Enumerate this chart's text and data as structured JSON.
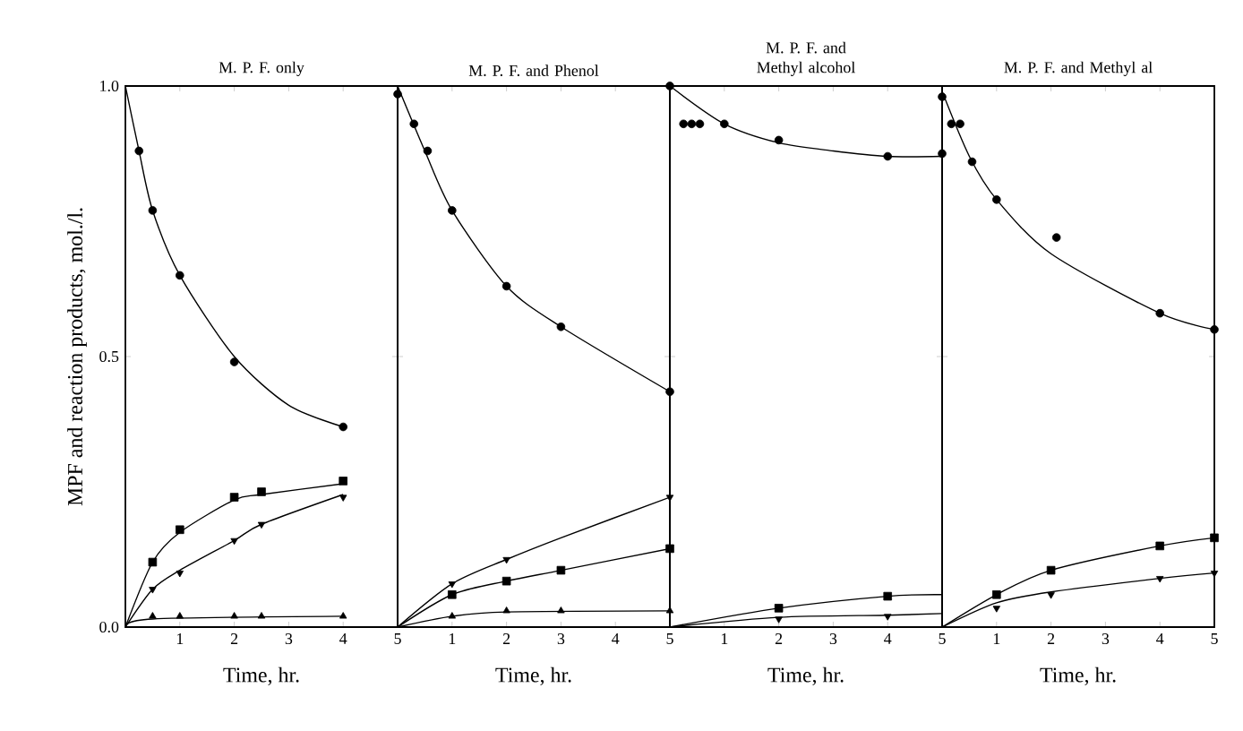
{
  "chart_data": [
    {
      "type": "scatter",
      "title": "M. P. F. only",
      "xlabel": "Time, hr.",
      "ylabel": "MPF and reaction products, mol./l.",
      "xlim": [
        0,
        5
      ],
      "ylim": [
        0,
        1
      ],
      "xticks": [
        1,
        2,
        3,
        4,
        5
      ],
      "yticks": [
        {
          "value": 0,
          "label": "0.0"
        },
        {
          "value": 0.5,
          "label": "0.5"
        },
        {
          "value": 1,
          "label": "1.0"
        }
      ],
      "series": [
        {
          "type": "line",
          "marker": "none",
          "color": "#000000",
          "x": [
            0,
            0.25,
            0.5,
            1,
            2,
            3,
            4
          ],
          "values": [
            1.0,
            0.88,
            0.77,
            0.65,
            0.5,
            0.41,
            0.37
          ]
        },
        {
          "type": "line",
          "marker": "none",
          "color": "#000000",
          "x": [
            0,
            0.5,
            1,
            2,
            2.5,
            4
          ],
          "values": [
            0,
            0.12,
            0.175,
            0.235,
            0.245,
            0.265
          ]
        },
        {
          "type": "line",
          "marker": "none",
          "color": "#000000",
          "x": [
            0,
            0.5,
            1,
            2,
            2.5,
            4
          ],
          "values": [
            0,
            0.07,
            0.105,
            0.16,
            0.19,
            0.245
          ]
        },
        {
          "type": "line",
          "marker": "none",
          "color": "#000000",
          "x": [
            0,
            0.5,
            4
          ],
          "values": [
            0,
            0.015,
            0.02
          ]
        },
        {
          "marker": "circle",
          "color": "#000000",
          "x": [
            0.25,
            0.5,
            1,
            2,
            4
          ],
          "values": [
            0.88,
            0.77,
            0.65,
            0.49,
            0.37
          ]
        },
        {
          "marker": "square",
          "color": "#000000",
          "x": [
            0.5,
            1,
            2,
            2.5,
            4
          ],
          "values": [
            0.12,
            0.18,
            0.24,
            0.25,
            0.27
          ]
        },
        {
          "marker": "triangle-down",
          "color": "#000000",
          "x": [
            0.5,
            1,
            2,
            2.5,
            4
          ],
          "values": [
            0.07,
            0.1,
            0.16,
            0.19,
            0.24
          ]
        },
        {
          "marker": "triangle",
          "color": "#000000",
          "x": [
            0.5,
            1,
            2,
            2.5,
            4
          ],
          "values": [
            0.02,
            0.02,
            0.02,
            0.02,
            0.02
          ]
        }
      ]
    },
    {
      "type": "scatter",
      "title": "M. P. F. and Phenol",
      "xlabel": "Time, hr.",
      "xlim": [
        0,
        5
      ],
      "ylim": [
        0,
        1
      ],
      "xticks": [
        1,
        2,
        3,
        4,
        5
      ],
      "yticks": [
        {
          "value": 0,
          "label": null
        },
        {
          "value": 0.5,
          "label": null
        },
        {
          "value": 1,
          "label": null
        }
      ],
      "tick_labels": "x",
      "series": [
        {
          "type": "line",
          "marker": "none",
          "color": "#000000",
          "x": [
            0,
            0.5,
            1,
            2,
            3,
            5
          ],
          "values": [
            1.0,
            0.88,
            0.77,
            0.63,
            0.555,
            0.435
          ]
        },
        {
          "type": "line",
          "marker": "none",
          "color": "#000000",
          "x": [
            0,
            1,
            2,
            3,
            5
          ],
          "values": [
            0,
            0.08,
            0.125,
            0.165,
            0.24
          ]
        },
        {
          "type": "line",
          "marker": "none",
          "color": "#000000",
          "x": [
            0,
            1,
            2,
            3,
            5
          ],
          "values": [
            0,
            0.06,
            0.085,
            0.105,
            0.145
          ]
        },
        {
          "type": "line",
          "marker": "none",
          "color": "#000000",
          "x": [
            0,
            1,
            2,
            5
          ],
          "values": [
            0,
            0.02,
            0.028,
            0.03
          ]
        },
        {
          "marker": "circle",
          "color": "#000000",
          "x": [
            0,
            0.3,
            0.55,
            1,
            2,
            3,
            5
          ],
          "values": [
            0.985,
            0.93,
            0.88,
            0.77,
            0.63,
            0.555,
            0.435
          ]
        },
        {
          "marker": "triangle-down",
          "color": "#000000",
          "x": [
            1,
            2,
            5
          ],
          "values": [
            0.08,
            0.125,
            0.24
          ]
        },
        {
          "marker": "square",
          "color": "#000000",
          "x": [
            1,
            2,
            3,
            5
          ],
          "values": [
            0.06,
            0.085,
            0.105,
            0.145
          ]
        },
        {
          "marker": "triangle",
          "color": "#000000",
          "x": [
            1,
            2,
            3,
            5
          ],
          "values": [
            0.02,
            0.03,
            0.03,
            0.03
          ]
        }
      ]
    },
    {
      "type": "scatter",
      "title": "M. P. F. and Methyl alcohol",
      "xlabel": "Time, hr.",
      "xlim": [
        0,
        5
      ],
      "ylim": [
        0,
        1
      ],
      "xticks": [
        1,
        2,
        3,
        4,
        5
      ],
      "yticks": [
        {
          "value": 0,
          "label": null
        },
        {
          "value": 0.5,
          "label": null
        },
        {
          "value": 1,
          "label": null
        }
      ],
      "tick_labels": "x",
      "series": [
        {
          "type": "line",
          "marker": "none",
          "color": "#000000",
          "x": [
            0,
            1,
            2,
            3,
            4,
            5
          ],
          "values": [
            1.0,
            0.93,
            0.895,
            0.88,
            0.87,
            0.87
          ]
        },
        {
          "type": "line",
          "marker": "none",
          "color": "#000000",
          "x": [
            0,
            2,
            4,
            5
          ],
          "values": [
            0,
            0.035,
            0.057,
            0.06
          ]
        },
        {
          "type": "line",
          "marker": "none",
          "color": "#000000",
          "x": [
            0,
            2,
            4,
            5
          ],
          "values": [
            0,
            0.018,
            0.022,
            0.025
          ]
        },
        {
          "marker": "circle",
          "color": "#000000",
          "x": [
            0,
            0.25,
            0.4,
            0.55,
            1,
            2,
            4,
            5
          ],
          "values": [
            1.0,
            0.93,
            0.93,
            0.93,
            0.93,
            0.9,
            0.87,
            0.875
          ]
        },
        {
          "marker": "square",
          "color": "#000000",
          "x": [
            2,
            4
          ],
          "values": [
            0.035,
            0.057
          ]
        },
        {
          "marker": "triangle-down",
          "color": "#000000",
          "x": [
            2,
            4
          ],
          "values": [
            0.015,
            0.02
          ]
        }
      ]
    },
    {
      "type": "scatter",
      "title": "M. P. F. and Methyl al",
      "xlabel": "Time, hr.",
      "xlim": [
        0,
        5
      ],
      "ylim": [
        0,
        1
      ],
      "xticks": [
        1,
        2,
        3,
        4,
        5
      ],
      "yticks": [
        {
          "value": 0,
          "label": null
        },
        {
          "value": 0.5,
          "label": null
        },
        {
          "value": 1,
          "label": null
        }
      ],
      "tick_labels": "x",
      "series": [
        {
          "type": "line",
          "marker": "none",
          "color": "#000000",
          "x": [
            0,
            0.5,
            1,
            2,
            4,
            5
          ],
          "values": [
            0.99,
            0.87,
            0.79,
            0.69,
            0.58,
            0.55
          ]
        },
        {
          "type": "line",
          "marker": "none",
          "color": "#000000",
          "x": [
            0,
            1,
            2,
            4,
            5
          ],
          "values": [
            0,
            0.06,
            0.105,
            0.15,
            0.165
          ]
        },
        {
          "type": "line",
          "marker": "none",
          "color": "#000000",
          "x": [
            0,
            1,
            2,
            4,
            5
          ],
          "values": [
            0,
            0.045,
            0.065,
            0.09,
            0.1
          ]
        },
        {
          "marker": "circle",
          "color": "#000000",
          "x": [
            0,
            0.17,
            0.33,
            0.55,
            1,
            2.1,
            4,
            5
          ],
          "values": [
            0.98,
            0.93,
            0.93,
            0.86,
            0.79,
            0.72,
            0.58,
            0.55
          ]
        },
        {
          "marker": "square",
          "color": "#000000",
          "x": [
            1,
            2,
            4,
            5
          ],
          "values": [
            0.06,
            0.105,
            0.15,
            0.165
          ]
        },
        {
          "marker": "triangle-down",
          "color": "#000000",
          "x": [
            1,
            2,
            4,
            5
          ],
          "values": [
            0.035,
            0.06,
            0.09,
            0.1
          ]
        }
      ]
    }
  ]
}
